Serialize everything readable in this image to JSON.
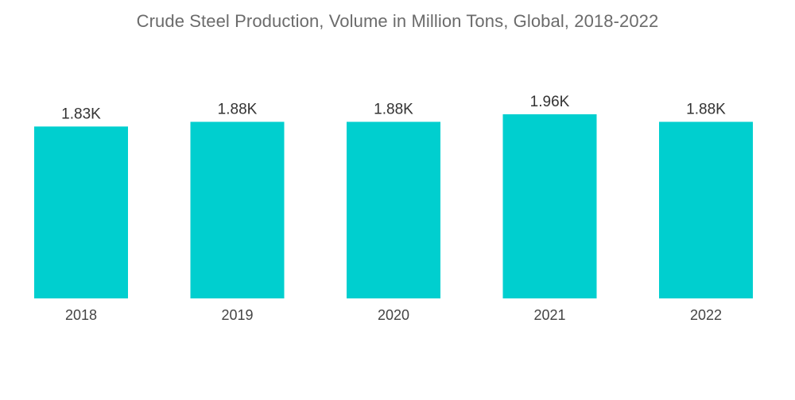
{
  "chart_data": {
    "type": "bar",
    "title": "Crude Steel Production, Volume in Million Tons, Global, 2018-2022",
    "categories": [
      "2018",
      "2019",
      "2020",
      "2021",
      "2022"
    ],
    "values": [
      1830,
      1880,
      1880,
      1960,
      1880
    ],
    "data_labels": [
      "1.83K",
      "1.88K",
      "1.88K",
      "1.96K",
      "1.88K"
    ],
    "xlabel": "",
    "ylabel": "",
    "ylim": [
      0,
      1960
    ],
    "grid": false,
    "legend": "none",
    "bar_color": "#00cfcf"
  }
}
